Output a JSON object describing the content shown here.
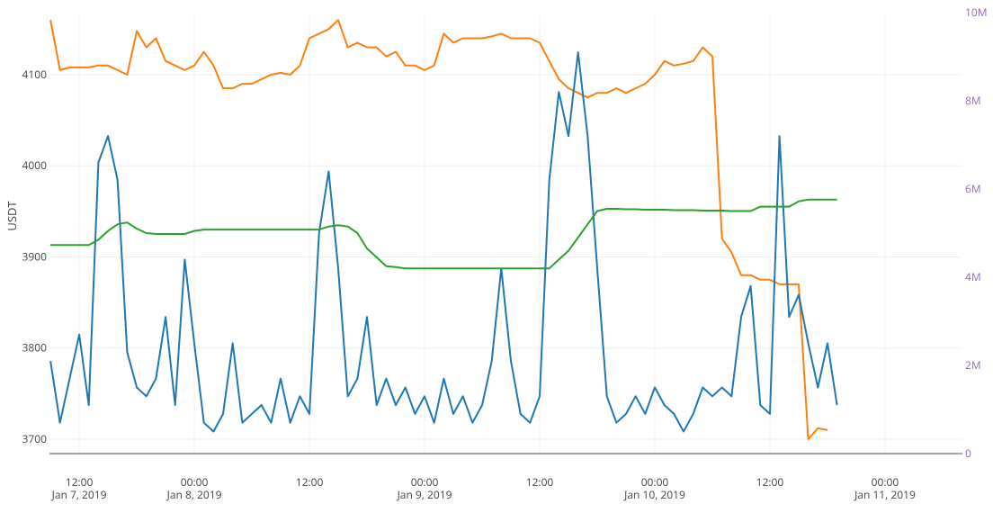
{
  "chart_data": {
    "type": "line",
    "y_label": "USDT",
    "x": [
      "2019-01-07 09:00",
      "2019-01-07 10:00",
      "2019-01-07 11:00",
      "2019-01-07 12:00",
      "2019-01-07 13:00",
      "2019-01-07 14:00",
      "2019-01-07 15:00",
      "2019-01-07 16:00",
      "2019-01-07 17:00",
      "2019-01-07 18:00",
      "2019-01-07 19:00",
      "2019-01-07 20:00",
      "2019-01-07 21:00",
      "2019-01-07 22:00",
      "2019-01-07 23:00",
      "2019-01-08 00:00",
      "2019-01-08 01:00",
      "2019-01-08 02:00",
      "2019-01-08 03:00",
      "2019-01-08 04:00",
      "2019-01-08 05:00",
      "2019-01-08 06:00",
      "2019-01-08 07:00",
      "2019-01-08 08:00",
      "2019-01-08 09:00",
      "2019-01-08 10:00",
      "2019-01-08 11:00",
      "2019-01-08 12:00",
      "2019-01-08 13:00",
      "2019-01-08 14:00",
      "2019-01-08 15:00",
      "2019-01-08 16:00",
      "2019-01-08 17:00",
      "2019-01-08 18:00",
      "2019-01-08 19:00",
      "2019-01-08 20:00",
      "2019-01-08 21:00",
      "2019-01-08 22:00",
      "2019-01-08 23:00",
      "2019-01-09 00:00",
      "2019-01-09 01:00",
      "2019-01-09 02:00",
      "2019-01-09 03:00",
      "2019-01-09 04:00",
      "2019-01-09 05:00",
      "2019-01-09 06:00",
      "2019-01-09 07:00",
      "2019-01-09 08:00",
      "2019-01-09 09:00",
      "2019-01-09 10:00",
      "2019-01-09 11:00",
      "2019-01-09 12:00",
      "2019-01-09 13:00",
      "2019-01-09 14:00",
      "2019-01-09 15:00",
      "2019-01-09 16:00",
      "2019-01-09 17:00",
      "2019-01-09 18:00",
      "2019-01-09 19:00",
      "2019-01-09 20:00",
      "2019-01-09 21:00",
      "2019-01-09 22:00",
      "2019-01-09 23:00",
      "2019-01-10 00:00",
      "2019-01-10 01:00",
      "2019-01-10 02:00",
      "2019-01-10 03:00",
      "2019-01-10 04:00",
      "2019-01-10 05:00",
      "2019-01-10 06:00",
      "2019-01-10 07:00",
      "2019-01-10 08:00",
      "2019-01-10 09:00",
      "2019-01-10 10:00",
      "2019-01-10 11:00",
      "2019-01-10 12:00",
      "2019-01-10 13:00",
      "2019-01-10 14:00",
      "2019-01-10 15:00",
      "2019-01-10 16:00",
      "2019-01-10 17:00",
      "2019-01-10 18:00",
      "2019-01-10 19:00"
    ],
    "series": [
      {
        "color": "#ff7f0e",
        "axis": "y",
        "values": [
          4160,
          4105,
          4108,
          4108,
          4108,
          4110,
          4110,
          4105,
          4100,
          4148,
          4130,
          4140,
          4115,
          4110,
          4105,
          4110,
          4125,
          4110,
          4085,
          4085,
          4090,
          4090,
          4095,
          4100,
          4102,
          4100,
          4110,
          4140,
          4145,
          4150,
          4160,
          4130,
          4135,
          4130,
          4130,
          4120,
          4125,
          4110,
          4110,
          4105,
          4110,
          4145,
          4135,
          4140,
          4140,
          4140,
          4142,
          4145,
          4140,
          4140,
          4140,
          4135,
          4115,
          4095,
          4085,
          4080,
          4075,
          4080,
          4080,
          4085,
          4080,
          4085,
          4090,
          4100,
          4115,
          4110,
          4112,
          4115,
          4130,
          4120,
          3920,
          3905,
          3880,
          3880,
          3875,
          3875,
          3870,
          3870,
          3870,
          3700,
          3712,
          3710,
          null
        ]
      },
      {
        "color": "#1f77b4",
        "axis": "y2",
        "values": [
          2100000,
          700000,
          1700000,
          2700000,
          1100000,
          6600000,
          7200000,
          6200000,
          2300000,
          1500000,
          1300000,
          1700000,
          3100000,
          1100000,
          4400000,
          2500000,
          700000,
          500000,
          900000,
          2500000,
          700000,
          900000,
          1100000,
          700000,
          1700000,
          700000,
          1300000,
          900000,
          5000000,
          6400000,
          4200000,
          1300000,
          1700000,
          3100000,
          1100000,
          1700000,
          1100000,
          1500000,
          900000,
          1300000,
          700000,
          1700000,
          900000,
          1300000,
          700000,
          1100000,
          2100000,
          4200000,
          2100000,
          900000,
          700000,
          1300000,
          6200000,
          8200000,
          7200000,
          9100000,
          7200000,
          4200000,
          1300000,
          700000,
          900000,
          1300000,
          900000,
          1500000,
          1100000,
          900000,
          500000,
          900000,
          1500000,
          1300000,
          1500000,
          1300000,
          3100000,
          3800000,
          1100000,
          900000,
          7200000,
          3100000,
          3600000,
          2500000,
          1500000,
          2500000,
          1100000
        ]
      },
      {
        "color": "#2ca02c",
        "axis": "y2",
        "values": [
          4730000,
          4730000,
          4730000,
          4730000,
          4730000,
          4850000,
          5050000,
          5200000,
          5240000,
          5100000,
          5000000,
          4980000,
          4980000,
          4980000,
          4980000,
          5050000,
          5080000,
          5080000,
          5080000,
          5080000,
          5080000,
          5080000,
          5080000,
          5080000,
          5080000,
          5080000,
          5080000,
          5080000,
          5080000,
          5150000,
          5180000,
          5150000,
          5000000,
          4650000,
          4450000,
          4250000,
          4230000,
          4200000,
          4200000,
          4200000,
          4200000,
          4200000,
          4200000,
          4200000,
          4200000,
          4200000,
          4200000,
          4200000,
          4200000,
          4200000,
          4200000,
          4200000,
          4200000,
          4400000,
          4600000,
          4900000,
          5200000,
          5500000,
          5550000,
          5550000,
          5540000,
          5540000,
          5530000,
          5530000,
          5530000,
          5520000,
          5520000,
          5520000,
          5510000,
          5510000,
          5510000,
          5500000,
          5500000,
          5500000,
          5600000,
          5600000,
          5600000,
          5600000,
          5720000,
          5760000,
          5760000,
          5760000,
          5760000
        ]
      }
    ],
    "xlim": [
      "2019-01-07 08:54",
      "2019-01-11 08:04"
    ],
    "xticks": [
      {
        "value": "2019-01-07 12:00",
        "label": [
          "12:00",
          "Jan 7, 2019"
        ]
      },
      {
        "value": "2019-01-08 00:00",
        "label": [
          "00:00",
          "Jan 8, 2019"
        ]
      },
      {
        "value": "2019-01-08 12:00",
        "label": [
          "12:00"
        ]
      },
      {
        "value": "2019-01-09 00:00",
        "label": [
          "00:00",
          "Jan 9, 2019"
        ]
      },
      {
        "value": "2019-01-09 12:00",
        "label": [
          "12:00"
        ]
      },
      {
        "value": "2019-01-10 00:00",
        "label": [
          "00:00",
          "Jan 10, 2019"
        ]
      },
      {
        "value": "2019-01-10 12:00",
        "label": [
          "12:00"
        ]
      },
      {
        "value": "2019-01-11 00:00",
        "label": [
          "00:00",
          "Jan 11, 2019"
        ]
      }
    ],
    "ylim": [
      3684.2,
      4168.1
    ],
    "yticks": [
      3700,
      3800,
      3900,
      4000,
      4100
    ],
    "y2lim": [
      0,
      10000000
    ],
    "y2ticks": [
      0,
      {
        "value": 2000000,
        "label": "2M"
      },
      {
        "value": 4000000,
        "label": "4M"
      },
      {
        "value": 6000000,
        "label": "6M"
      },
      {
        "value": 8000000,
        "label": "8M"
      },
      {
        "value": 10000000,
        "label": "10M"
      }
    ],
    "y2_color": "#9467bd",
    "grid": true
  }
}
